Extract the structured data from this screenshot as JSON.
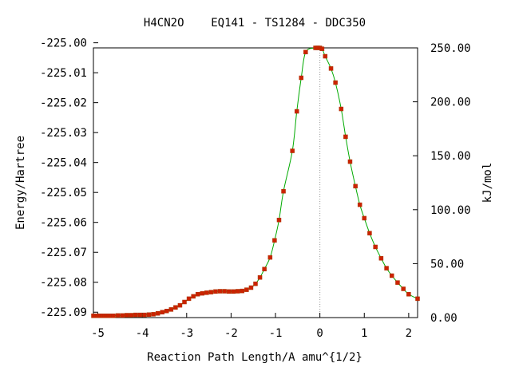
{
  "chart_data": {
    "type": "line",
    "title": "H4CN2O    EQ141 - TS1284 - DDC350",
    "xlabel": "Reaction Path Length/A amu^{1/2}",
    "ylabel": "Energy/Hartree",
    "y2label": "kJ/mol",
    "xlim": [
      -5.1,
      2.2
    ],
    "ylim": [
      -225.0918,
      -225.0017
    ],
    "y2lim": [
      0.0,
      250.0
    ],
    "x_ticks": [
      -5,
      -4,
      -3,
      -2,
      -1,
      0,
      1,
      2
    ],
    "x_tick_labels": [
      "-5",
      "-4",
      "-3",
      "-2",
      "-1",
      "0",
      "1",
      "2"
    ],
    "y_ticks": [
      -225.0,
      -225.01,
      -225.02,
      -225.03,
      -225.04,
      -225.05,
      -225.06,
      -225.07,
      -225.08,
      -225.09
    ],
    "y_tick_labels": [
      "-225.00",
      "-225.01",
      "-225.02",
      "-225.03",
      "-225.04",
      "-225.05",
      "-225.06",
      "-225.07",
      "-225.08",
      "-225.09"
    ],
    "y2_ticks": [
      0,
      50,
      100,
      150,
      200,
      250
    ],
    "y2_tick_labels": [
      "0.00",
      "50.00",
      "100.00",
      "150.00",
      "200.00",
      "250.00"
    ],
    "ts_marker_x": 0.0,
    "grid": false,
    "colors": {
      "line": "#00aa00",
      "marker": "#cc2200",
      "ts_line": "#999999",
      "axis": "#000000"
    },
    "series": [
      {
        "points": [
          [
            -5.1,
            -225.0912
          ],
          [
            -5.05,
            -225.0912
          ],
          [
            -5.0,
            -225.0912
          ],
          [
            -4.95,
            -225.0912
          ],
          [
            -4.9,
            -225.0912
          ],
          [
            -4.85,
            -225.0912
          ],
          [
            -4.8,
            -225.0912
          ],
          [
            -4.75,
            -225.0912
          ],
          [
            -4.7,
            -225.0912
          ],
          [
            -4.65,
            -225.0912
          ],
          [
            -4.55,
            -225.0911
          ],
          [
            -4.45,
            -225.0911
          ],
          [
            -4.35,
            -225.091
          ],
          [
            -4.25,
            -225.091
          ],
          [
            -4.15,
            -225.0909
          ],
          [
            -4.05,
            -225.0909
          ],
          [
            -3.95,
            -225.0909
          ],
          [
            -3.85,
            -225.0908
          ],
          [
            -3.75,
            -225.0907
          ],
          [
            -3.65,
            -225.0904
          ],
          [
            -3.55,
            -225.09
          ],
          [
            -3.45,
            -225.0896
          ],
          [
            -3.35,
            -225.0891
          ],
          [
            -3.25,
            -225.0884
          ],
          [
            -3.15,
            -225.0877
          ],
          [
            -3.05,
            -225.0866
          ],
          [
            -2.95,
            -225.0855
          ],
          [
            -2.85,
            -225.0847
          ],
          [
            -2.75,
            -225.084
          ],
          [
            -2.65,
            -225.0837
          ],
          [
            -2.55,
            -225.0835
          ],
          [
            -2.45,
            -225.0833
          ],
          [
            -2.35,
            -225.0831
          ],
          [
            -2.25,
            -225.083
          ],
          [
            -2.15,
            -225.083
          ],
          [
            -2.05,
            -225.0831
          ],
          [
            -1.95,
            -225.0831
          ],
          [
            -1.85,
            -225.083
          ],
          [
            -1.75,
            -225.0829
          ],
          [
            -1.65,
            -225.0825
          ],
          [
            -1.55,
            -225.0818
          ],
          [
            -1.45,
            -225.0805
          ],
          [
            -1.35,
            -225.0784
          ],
          [
            -1.25,
            -225.0756
          ],
          [
            -1.12,
            -225.0717
          ],
          [
            -1.02,
            -225.066
          ],
          [
            -0.92,
            -225.0592
          ],
          [
            -0.82,
            -225.0496
          ],
          [
            -0.62,
            -225.0361
          ],
          [
            -0.52,
            -225.0229
          ],
          [
            -0.42,
            -225.0117
          ],
          [
            -0.32,
            -225.0031
          ],
          [
            -0.1,
            -225.0017
          ],
          [
            -0.05,
            -225.0017
          ],
          [
            0.0,
            -225.0017
          ],
          [
            0.05,
            -225.002
          ],
          [
            0.12,
            -225.0045
          ],
          [
            0.25,
            -225.0086
          ],
          [
            0.35,
            -225.0133
          ],
          [
            0.48,
            -225.0221
          ],
          [
            0.58,
            -225.0314
          ],
          [
            0.68,
            -225.0397
          ],
          [
            0.8,
            -225.0479
          ],
          [
            0.9,
            -225.0541
          ],
          [
            1.0,
            -225.0586
          ],
          [
            1.12,
            -225.0636
          ],
          [
            1.25,
            -225.0682
          ],
          [
            1.38,
            -225.072
          ],
          [
            1.5,
            -225.0753
          ],
          [
            1.62,
            -225.0778
          ],
          [
            1.75,
            -225.0801
          ],
          [
            1.88,
            -225.0822
          ],
          [
            2.0,
            -225.084
          ],
          [
            2.2,
            -225.0855
          ]
        ]
      }
    ]
  }
}
